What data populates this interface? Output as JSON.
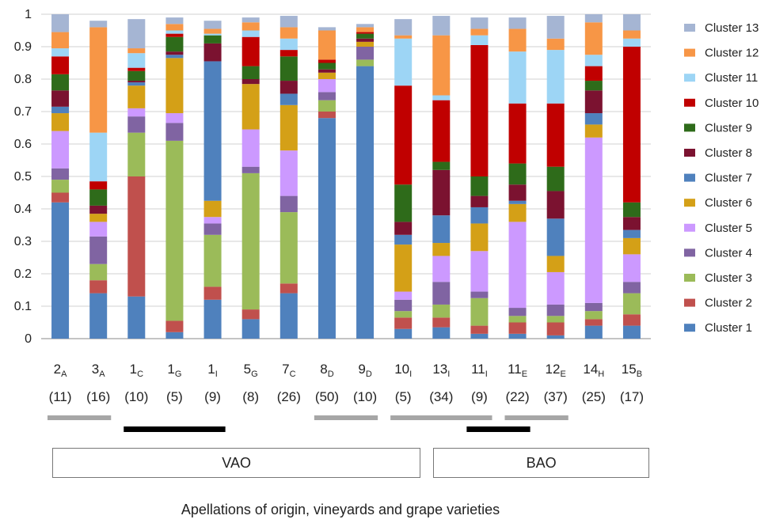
{
  "chart_data": {
    "type": "bar",
    "stacked": true,
    "ylim": [
      0,
      1
    ],
    "yticks": [
      "0",
      "0.1",
      "0.2",
      "0.3",
      "0.4",
      "0.5",
      "0.6",
      "0.7",
      "0.8",
      "0.9",
      "1"
    ],
    "grid": "horizontal",
    "legend_position": "right",
    "categories": [
      {
        "main": "2",
        "sub": "A",
        "n": "(11)"
      },
      {
        "main": "3",
        "sub": "A",
        "n": "(16)"
      },
      {
        "main": "1",
        "sub": "C",
        "n": "(10)"
      },
      {
        "main": "1",
        "sub": "G",
        "n": "(5)"
      },
      {
        "main": "1",
        "sub": "I",
        "n": "(9)"
      },
      {
        "main": "5",
        "sub": "G",
        "n": "(8)"
      },
      {
        "main": "7",
        "sub": "C",
        "n": "(26)"
      },
      {
        "main": "8",
        "sub": "D",
        "n": "(50)"
      },
      {
        "main": "9",
        "sub": "D",
        "n": "(10)"
      },
      {
        "main": "10",
        "sub": "I",
        "n": "(5)"
      },
      {
        "main": "13",
        "sub": "I",
        "n": "(34)"
      },
      {
        "main": "11",
        "sub": "I",
        "n": "(9)"
      },
      {
        "main": "11",
        "sub": "E",
        "n": "(22)"
      },
      {
        "main": "12",
        "sub": "E",
        "n": "(37)"
      },
      {
        "main": "14",
        "sub": "H",
        "n": "(25)"
      },
      {
        "main": "15",
        "sub": "B",
        "n": "(17)"
      }
    ],
    "series": [
      {
        "name": "Cluster 1",
        "color": "#4F81BD",
        "values": [
          0.42,
          0.14,
          0.13,
          0.02,
          0.12,
          0.06,
          0.14,
          0.68,
          0.84,
          0.03,
          0.035,
          0.015,
          0.015,
          0.01,
          0.04,
          0.04
        ]
      },
      {
        "name": "Cluster 2",
        "color": "#C0504D",
        "values": [
          0.03,
          0.04,
          0.37,
          0.035,
          0.04,
          0.03,
          0.03,
          0.02,
          0.0,
          0.035,
          0.03,
          0.025,
          0.035,
          0.04,
          0.02,
          0.035
        ]
      },
      {
        "name": "Cluster 3",
        "color": "#9BBB59",
        "values": [
          0.04,
          0.05,
          0.135,
          0.555,
          0.16,
          0.42,
          0.22,
          0.035,
          0.02,
          0.02,
          0.04,
          0.085,
          0.02,
          0.02,
          0.025,
          0.065
        ]
      },
      {
        "name": "Cluster 4",
        "color": "#8064A2",
        "values": [
          0.035,
          0.085,
          0.05,
          0.055,
          0.035,
          0.02,
          0.05,
          0.025,
          0.04,
          0.035,
          0.07,
          0.02,
          0.025,
          0.035,
          0.025,
          0.035
        ]
      },
      {
        "name": "Cluster 5",
        "color": "#CC99FF",
        "values": [
          0.115,
          0.045,
          0.025,
          0.03,
          0.02,
          0.115,
          0.14,
          0.04,
          0.0,
          0.025,
          0.08,
          0.125,
          0.265,
          0.1,
          0.51,
          0.085
        ]
      },
      {
        "name": "Cluster 6",
        "color": "#D4A017",
        "values": [
          0.055,
          0.025,
          0.07,
          0.17,
          0.05,
          0.14,
          0.14,
          0.02,
          0.015,
          0.145,
          0.04,
          0.085,
          0.055,
          0.05,
          0.04,
          0.05
        ]
      },
      {
        "name": "Cluster 7",
        "color": "#4F81BD",
        "values": [
          0.02,
          0.0,
          0.01,
          0.01,
          0.43,
          0.0,
          0.035,
          0.0,
          0.0,
          0.03,
          0.085,
          0.05,
          0.01,
          0.115,
          0.035,
          0.025
        ]
      },
      {
        "name": "Cluster 8",
        "color": "#7B1230",
        "values": [
          0.05,
          0.025,
          0.005,
          0.01,
          0.055,
          0.015,
          0.04,
          0.01,
          0.01,
          0.04,
          0.14,
          0.035,
          0.05,
          0.085,
          0.07,
          0.04
        ]
      },
      {
        "name": "Cluster 9",
        "color": "#2E6B1A",
        "values": [
          0.05,
          0.05,
          0.03,
          0.045,
          0.025,
          0.04,
          0.075,
          0.02,
          0.015,
          0.115,
          0.025,
          0.06,
          0.065,
          0.075,
          0.03,
          0.045
        ]
      },
      {
        "name": "Cluster 10",
        "color": "#C00000",
        "values": [
          0.055,
          0.025,
          0.01,
          0.01,
          0.0,
          0.09,
          0.02,
          0.01,
          0.005,
          0.305,
          0.19,
          0.405,
          0.185,
          0.195,
          0.045,
          0.48
        ]
      },
      {
        "name": "Cluster 11",
        "color": "#9DD5F5",
        "values": [
          0.025,
          0.15,
          0.045,
          0.01,
          0.005,
          0.02,
          0.035,
          0.0,
          0.0,
          0.145,
          0.015,
          0.03,
          0.16,
          0.165,
          0.035,
          0.025
        ]
      },
      {
        "name": "Cluster 12",
        "color": "#F79646",
        "values": [
          0.05,
          0.325,
          0.015,
          0.02,
          0.015,
          0.025,
          0.035,
          0.09,
          0.015,
          0.01,
          0.185,
          0.02,
          0.07,
          0.035,
          0.1,
          0.025
        ]
      },
      {
        "name": "Cluster 13",
        "color": "#A5B5D3",
        "values": [
          0.055,
          0.02,
          0.09,
          0.02,
          0.025,
          0.015,
          0.035,
          0.01,
          0.01,
          0.05,
          0.06,
          0.035,
          0.035,
          0.07,
          0.025,
          0.05
        ]
      }
    ],
    "grouping_bars": [
      {
        "from": 0,
        "to": 1,
        "style": "gray"
      },
      {
        "from": 2,
        "to": 4,
        "style": "black"
      },
      {
        "from": 7,
        "to": 8,
        "style": "gray"
      },
      {
        "from": 9,
        "to": 11,
        "style": "gray"
      },
      {
        "from": 11,
        "to": 12,
        "style": "black"
      },
      {
        "from": 12,
        "to": 13,
        "style": "gray"
      }
    ],
    "groups": [
      {
        "label": "VAO",
        "from": 0,
        "to": 9
      },
      {
        "label": "BAO",
        "from": 10,
        "to": 15
      }
    ],
    "xlabel": "Apellations of origin, vineyards and grape varieties"
  }
}
